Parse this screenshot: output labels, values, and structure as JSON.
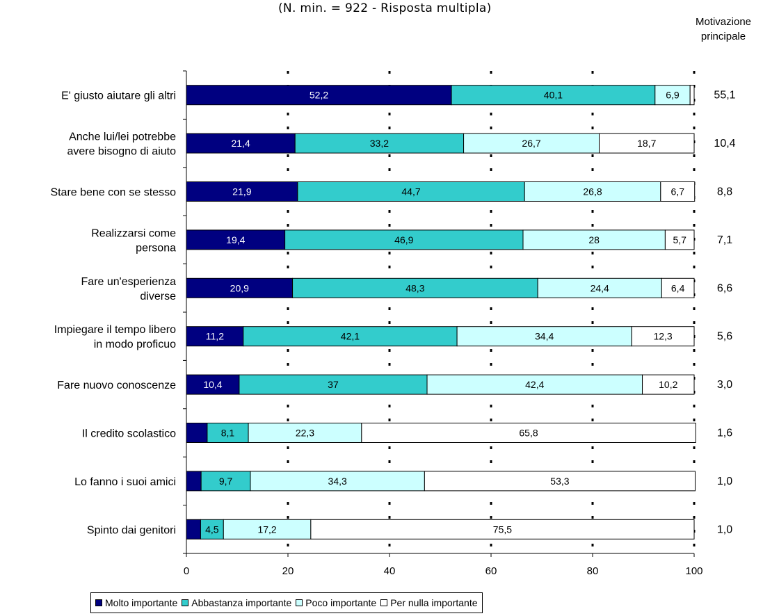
{
  "subtitle": "(N. min. = 922 - Risposta multipla)",
  "side_header": [
    "Motivazione",
    "principale"
  ],
  "colors": {
    "molto": "#000080",
    "abbastanza": "#33CCCC",
    "poco": "#CCFFFF",
    "nulla": "#FFFFFF"
  },
  "chart_data": {
    "type": "bar",
    "orientation": "horizontal",
    "stacked": true,
    "categories": [
      [
        "E' giusto aiutare gli altri"
      ],
      [
        "Anche lui/lei potrebbe",
        "avere bisogno di aiuto"
      ],
      [
        "Stare bene con se stesso"
      ],
      [
        "Realizzarsi come",
        "persona"
      ],
      [
        "Fare un'esperienza",
        "diverse"
      ],
      [
        "Impiegare il tempo libero",
        "in modo proficuo"
      ],
      [
        "Fare nuovo conoscenze"
      ],
      [
        "Il credito scolastico"
      ],
      [
        "Lo fanno i suoi amici"
      ],
      [
        "Spinto dai genitori"
      ]
    ],
    "series": [
      {
        "name": "Molto importante",
        "values": [
          52.2,
          21.4,
          21.9,
          19.4,
          20.9,
          11.2,
          10.4,
          4.1,
          2.9,
          2.8
        ],
        "labels": [
          "52,2",
          "21,4",
          "21,9",
          "19,4",
          "20,9",
          "11,2",
          "10,4",
          "",
          "",
          ""
        ]
      },
      {
        "name": "Abbastanza importante",
        "values": [
          40.1,
          33.2,
          44.7,
          46.9,
          48.3,
          42.1,
          37,
          8.1,
          9.7,
          4.5
        ],
        "labels": [
          "40,1",
          "33,2",
          "44,7",
          "46,9",
          "48,3",
          "42,1",
          "37",
          "8,1",
          "9,7",
          "4,5"
        ]
      },
      {
        "name": "Poco importante",
        "values": [
          6.9,
          26.7,
          26.8,
          28,
          24.4,
          34.4,
          42.4,
          22.3,
          34.3,
          17.2
        ],
        "labels": [
          "6,9",
          "26,7",
          "26,8",
          "28",
          "24,4",
          "34,4",
          "42,4",
          "22,3",
          "34,3",
          "17,2"
        ]
      },
      {
        "name": "Per nulla importante",
        "values": [
          0.8,
          18.7,
          6.7,
          5.7,
          6.4,
          12.3,
          10.2,
          65.8,
          53.3,
          75.5
        ],
        "labels": [
          "",
          "18,7",
          "6,7",
          "5,7",
          "6,4",
          "12,3",
          "10,2",
          "65,8",
          "53,3",
          "75,5"
        ]
      }
    ],
    "motivazione_principale": [
      "55,1",
      "10,4",
      "8,8",
      "7,1",
      "6,6",
      "5,6",
      "3,0",
      "1,6",
      "1,0",
      "1,0"
    ],
    "xlim": [
      0,
      100
    ],
    "xticks": [
      0,
      20,
      40,
      60,
      80,
      100
    ],
    "gridlines": [
      20,
      40,
      60,
      80,
      100
    ],
    "legend_position": "bottom"
  }
}
